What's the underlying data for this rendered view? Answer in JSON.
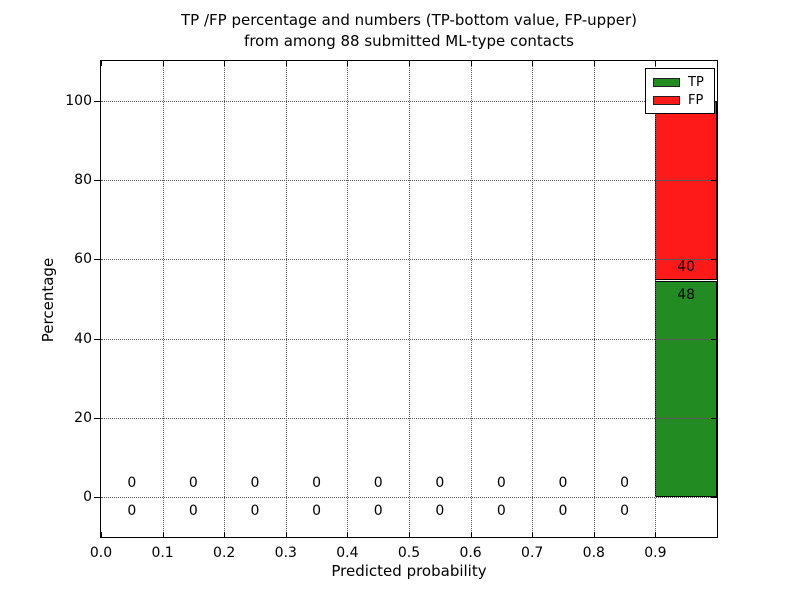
{
  "title": {
    "line1": "TP /FP percentage and numbers (TP-bottom value, FP-upper)",
    "line2": "from among 88 submitted ML-type contacts"
  },
  "axes": {
    "ylabel": "Percentage",
    "xlabel": "Predicted probability"
  },
  "legend": {
    "position": "upper right",
    "items": [
      {
        "label": "TP",
        "color": "#228B22"
      },
      {
        "label": "FP",
        "color": "#FF1A1A"
      }
    ]
  },
  "chart_data": {
    "type": "bar",
    "stacked": true,
    "title": "TP /FP percentage and numbers (TP-bottom value, FP-upper) from among 88 submitted ML-type contacts",
    "xlabel": "Predicted probability",
    "ylabel": "Percentage",
    "total_contacts": 88,
    "xlim": [
      0.0,
      1.0
    ],
    "ylim": [
      -10,
      110
    ],
    "grid": true,
    "grid_style": "dotted",
    "bin_width": 0.1,
    "yticks": [
      0,
      20,
      40,
      60,
      80,
      100
    ],
    "xticks": [
      {
        "v": 0.0,
        "label": "0.0"
      },
      {
        "v": 0.1,
        "label": "0.1"
      },
      {
        "v": 0.2,
        "label": "0.2"
      },
      {
        "v": 0.3,
        "label": "0.3"
      },
      {
        "v": 0.4,
        "label": "0.4"
      },
      {
        "v": 0.5,
        "label": "0.5"
      },
      {
        "v": 0.6,
        "label": "0.6"
      },
      {
        "v": 0.7,
        "label": "0.7"
      },
      {
        "v": 0.8,
        "label": "0.8"
      },
      {
        "v": 0.9,
        "label": "0.9"
      }
    ],
    "series": [
      {
        "name": "TP",
        "color": "#228B22"
      },
      {
        "name": "FP",
        "color": "#FF1A1A"
      }
    ],
    "bins": [
      {
        "center": 0.05,
        "tp": 0,
        "fp": 0
      },
      {
        "center": 0.15,
        "tp": 0,
        "fp": 0
      },
      {
        "center": 0.25,
        "tp": 0,
        "fp": 0
      },
      {
        "center": 0.35,
        "tp": 0,
        "fp": 0
      },
      {
        "center": 0.45,
        "tp": 0,
        "fp": 0
      },
      {
        "center": 0.55,
        "tp": 0,
        "fp": 0
      },
      {
        "center": 0.65,
        "tp": 0,
        "fp": 0
      },
      {
        "center": 0.75,
        "tp": 0,
        "fp": 0
      },
      {
        "center": 0.85,
        "tp": 0,
        "fp": 0
      },
      {
        "center": 0.95,
        "tp": 48,
        "fp": 40
      }
    ]
  }
}
